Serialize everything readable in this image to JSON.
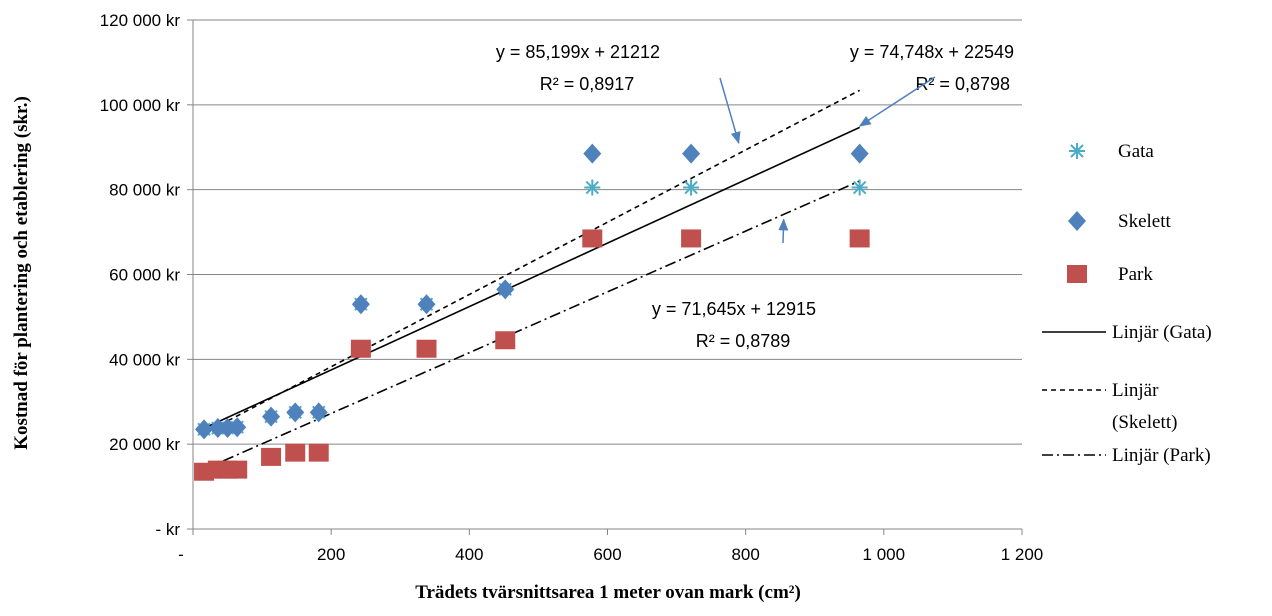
{
  "chart_data": {
    "type": "scatter",
    "title": "",
    "xlabel": "Trädets tvärsnittsarea 1 meter ovan mark (cm²)",
    "ylabel": "Kostnad för plantering och etablering (skr.)",
    "xlim": [
      0,
      1200
    ],
    "ylim": [
      0,
      120000
    ],
    "x_ticks": [
      {
        "value": 0,
        "label": "-"
      },
      {
        "value": 200,
        "label": "200"
      },
      {
        "value": 400,
        "label": "400"
      },
      {
        "value": 600,
        "label": "600"
      },
      {
        "value": 800,
        "label": "800"
      },
      {
        "value": 1000,
        "label": "1 000"
      },
      {
        "value": 1200,
        "label": "1 200"
      }
    ],
    "y_ticks": [
      {
        "value": 0,
        "label": "-   kr"
      },
      {
        "value": 20000,
        "label": "20 000 kr"
      },
      {
        "value": 40000,
        "label": "40 000 kr"
      },
      {
        "value": 60000,
        "label": "60 000 kr"
      },
      {
        "value": 80000,
        "label": "80 000 kr"
      },
      {
        "value": 100000,
        "label": "100 000 kr"
      },
      {
        "value": 120000,
        "label": "120 000 kr"
      }
    ],
    "grid": "horizontal",
    "legend_position": "right",
    "series": [
      {
        "name": "Gata",
        "kind": "points",
        "marker": "asterisk",
        "color": "#4bacc6",
        "points": [
          [
            16,
            23500
          ],
          [
            36,
            23800
          ],
          [
            50,
            23800
          ],
          [
            64,
            24000
          ],
          [
            113,
            26500
          ],
          [
            148,
            27500
          ],
          [
            182,
            27500
          ],
          [
            243,
            53000
          ],
          [
            338,
            53000
          ],
          [
            452,
            56500
          ],
          [
            578,
            80500
          ],
          [
            721,
            80500
          ],
          [
            965,
            80500
          ]
        ]
      },
      {
        "name": "Skelett",
        "kind": "points",
        "marker": "diamond",
        "color": "#4f81bd",
        "points": [
          [
            16,
            23500
          ],
          [
            36,
            23800
          ],
          [
            50,
            23800
          ],
          [
            64,
            24000
          ],
          [
            113,
            26500
          ],
          [
            148,
            27500
          ],
          [
            182,
            27500
          ],
          [
            243,
            53000
          ],
          [
            338,
            53000
          ],
          [
            452,
            56500
          ],
          [
            578,
            88500
          ],
          [
            721,
            88500
          ],
          [
            965,
            88500
          ]
        ]
      },
      {
        "name": "Park",
        "kind": "points",
        "marker": "square",
        "color": "#c0504d",
        "points": [
          [
            16,
            13500
          ],
          [
            36,
            14000
          ],
          [
            50,
            14000
          ],
          [
            64,
            14000
          ],
          [
            113,
            17000
          ],
          [
            148,
            18000
          ],
          [
            182,
            18000
          ],
          [
            243,
            42500
          ],
          [
            338,
            42500
          ],
          [
            452,
            44500
          ],
          [
            578,
            68500
          ],
          [
            721,
            68500
          ],
          [
            965,
            68500
          ]
        ]
      },
      {
        "name": "Linjär (Gata)",
        "kind": "trend",
        "dash": "solid",
        "slope": 74.748,
        "intercept": 22549,
        "x_range": [
          16,
          965
        ]
      },
      {
        "name": "Linjär (Skelett)",
        "kind": "trend",
        "dash": "dashed",
        "slope": 85.199,
        "intercept": 21212,
        "x_range": [
          16,
          965
        ]
      },
      {
        "name": "Linjär (Park)",
        "kind": "trend",
        "dash": "dashdot",
        "slope": 71.645,
        "intercept": 12915,
        "x_range": [
          16,
          965
        ]
      }
    ],
    "legend": {
      "items": [
        {
          "label": "Gata",
          "marker": "asterisk",
          "color": "#4bacc6"
        },
        {
          "label": "Skelett",
          "marker": "diamond",
          "color": "#4f81bd"
        },
        {
          "label": "Park",
          "marker": "square",
          "color": "#c0504d"
        },
        {
          "label": "Linjär (Gata)",
          "line": "solid"
        },
        {
          "label_lines": [
            "Linjär",
            "(Skelett)"
          ],
          "line": "dashed"
        },
        {
          "label": "Linjär (Park)",
          "line": "dashdot"
        }
      ]
    },
    "annotations": [
      {
        "lines": [
          "y = 85,199x + 21212",
          "R² = 0,8917"
        ],
        "points_to": [
          790,
          91000
        ]
      },
      {
        "lines": [
          "y = 74,748x + 22549",
          "R² = 0,8798"
        ],
        "points_to": [
          965,
          95000
        ]
      },
      {
        "lines": [
          "y = 71,645x + 12915",
          "R² = 0,8789"
        ],
        "points_to": [
          855,
          73000
        ]
      }
    ]
  }
}
